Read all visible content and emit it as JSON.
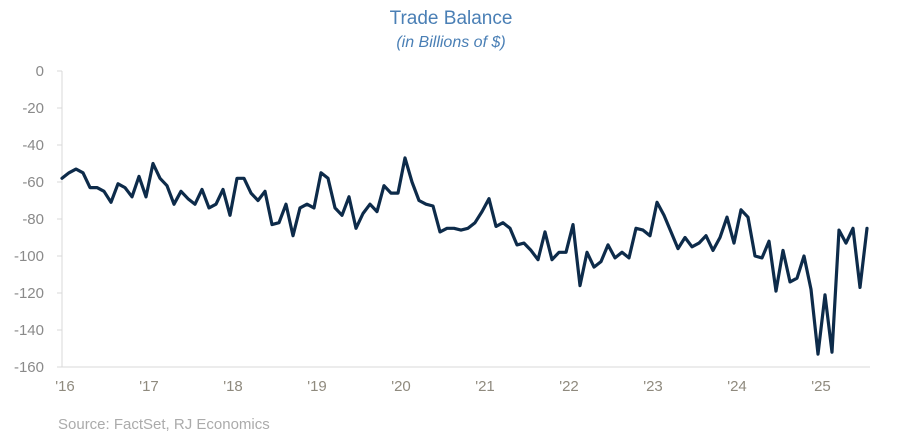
{
  "chart_data": {
    "type": "line",
    "title": "Trade Balance",
    "subtitle": "(in Billions of $)",
    "xlabel": "",
    "ylabel": "",
    "ylim": [
      -160,
      0
    ],
    "yticks": [
      0,
      -20,
      -40,
      -60,
      -80,
      -100,
      -120,
      -140,
      -160
    ],
    "ytick_labels": [
      "0",
      "-20",
      "-40",
      "-60",
      "-80",
      "-100",
      "-120",
      "-140",
      "-160"
    ],
    "xtick_labels": [
      "'16",
      "'17",
      "'18",
      "'19",
      "'20",
      "'21",
      "'22",
      "'23",
      "'24",
      "'25"
    ],
    "x_start": "2016-01",
    "frequency": "monthly",
    "grid": false,
    "line_color": "#0d2b4a",
    "series": [
      {
        "name": "Trade Balance",
        "values": [
          -58,
          -55,
          -53,
          -55,
          -63,
          -63,
          -65,
          -71,
          -61,
          -63,
          -68,
          -57,
          -68,
          -50,
          -58,
          -62,
          -72,
          -65,
          -69,
          -72,
          -64,
          -74,
          -72,
          -64,
          -78,
          -58,
          -58,
          -66,
          -70,
          -65,
          -83,
          -82,
          -72,
          -89,
          -74,
          -72,
          -74,
          -55,
          -58,
          -74,
          -78,
          -68,
          -85,
          -77,
          -72,
          -76,
          -62,
          -66,
          -66,
          -47,
          -60,
          -70,
          -72,
          -73,
          -87,
          -85,
          -85,
          -86,
          -85,
          -82,
          -76,
          -69,
          -84,
          -82,
          -85,
          -94,
          -93,
          -97,
          -102,
          -87,
          -102,
          -98,
          -98,
          -83,
          -116,
          -98,
          -106,
          -103,
          -94,
          -101,
          -98,
          -101,
          -85,
          -86,
          -89,
          -71,
          -78,
          -87,
          -96,
          -90,
          -95,
          -93,
          -89,
          -97,
          -90,
          -79,
          -93,
          -75,
          -79,
          -100,
          -101,
          -92,
          -119,
          -97,
          -114,
          -112,
          -100,
          -118,
          -153,
          -121,
          -152,
          -86,
          -93,
          -85,
          -117,
          -85
        ]
      }
    ]
  },
  "source": "Source: FactSet, RJ Economics"
}
